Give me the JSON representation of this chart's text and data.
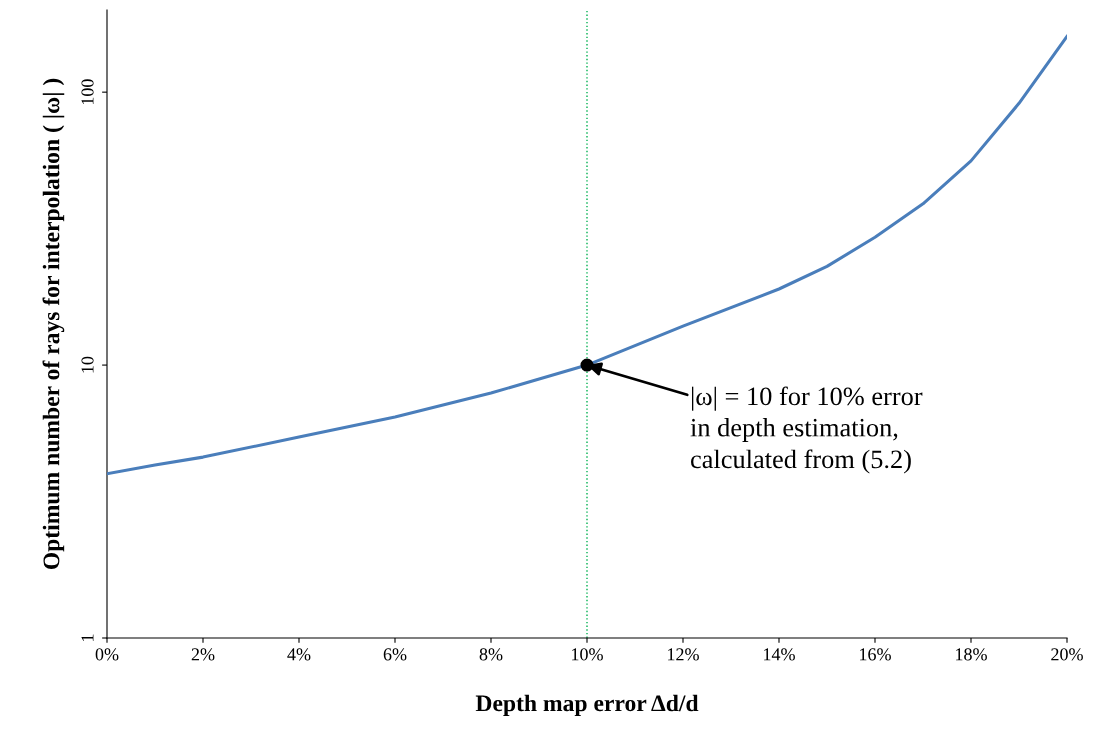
{
  "chart_data": {
    "type": "line",
    "xlabel": "Depth map error Δd/d",
    "ylabel": "Optimum number of rays for interpolation ( |ω| )",
    "series": [
      {
        "color": "#4a7ebb",
        "x": [
          0,
          1,
          2,
          4,
          6,
          8,
          10,
          12,
          14,
          15,
          16,
          17,
          18,
          19,
          20
        ],
        "values": [
          4.0,
          4.3,
          4.6,
          5.45,
          6.45,
          7.9,
          10,
          13.9,
          19,
          23,
          29.4,
          39,
          56,
          91,
          160
        ]
      },
      {
        "type": "scatter",
        "color": "#000000",
        "marker": "circle",
        "x": [
          10
        ],
        "values": [
          10
        ]
      }
    ],
    "log": "y",
    "xlim": [
      0,
      20
    ],
    "ylim": [
      1,
      200
    ],
    "xticks": [
      {
        "value": 0,
        "label": "0%"
      },
      {
        "value": 2,
        "label": "2%"
      },
      {
        "value": 4,
        "label": "4%"
      },
      {
        "value": 6,
        "label": "6%"
      },
      {
        "value": 8,
        "label": "8%"
      },
      {
        "value": 10,
        "label": "10%"
      },
      {
        "value": 12,
        "label": "12%"
      },
      {
        "value": 14,
        "label": "14%"
      },
      {
        "value": 16,
        "label": "16%"
      },
      {
        "value": 18,
        "label": "18%"
      },
      {
        "value": 20,
        "label": "20%"
      }
    ],
    "yticks": [
      1,
      10,
      100
    ],
    "ref_lines": [
      {
        "axis": "x",
        "value": 10,
        "color": "#00b050",
        "line_style": "dotted"
      }
    ],
    "annotations": [
      {
        "text": "|ω| = 10 for 10% error\nin depth estimation,\ncalculated from (5.2)",
        "x": 10,
        "y": 10
      }
    ],
    "grid": false,
    "legend": false
  }
}
